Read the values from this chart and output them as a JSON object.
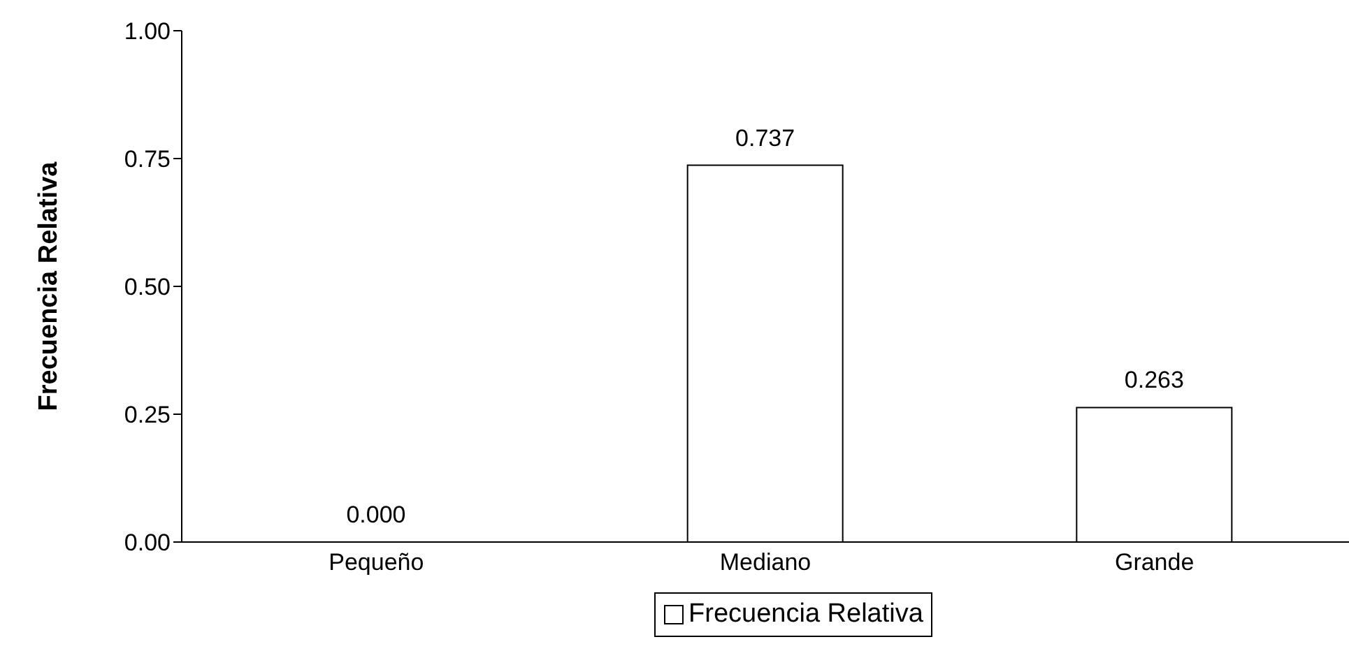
{
  "chart_data": {
    "type": "bar",
    "ylabel": "Frecuencia Relativa",
    "categories": [
      "Pequeño",
      "Mediano",
      "Grande"
    ],
    "series": [
      {
        "name": "Frecuencia Relativa",
        "color": "#ffffff",
        "values": [
          0.0,
          0.737,
          0.263
        ],
        "value_labels": [
          "0.000",
          "0.737",
          "0.263"
        ]
      }
    ],
    "ylim": [
      0,
      1
    ],
    "yticks": [
      {
        "value": 0,
        "label": "0.00"
      },
      {
        "value": 0.25,
        "label": "0.25"
      },
      {
        "value": 0.5,
        "label": "0.50"
      },
      {
        "value": 0.75,
        "label": "0.75"
      },
      {
        "value": 1,
        "label": "1.00"
      }
    ],
    "grid": false,
    "legend": "bottom"
  }
}
